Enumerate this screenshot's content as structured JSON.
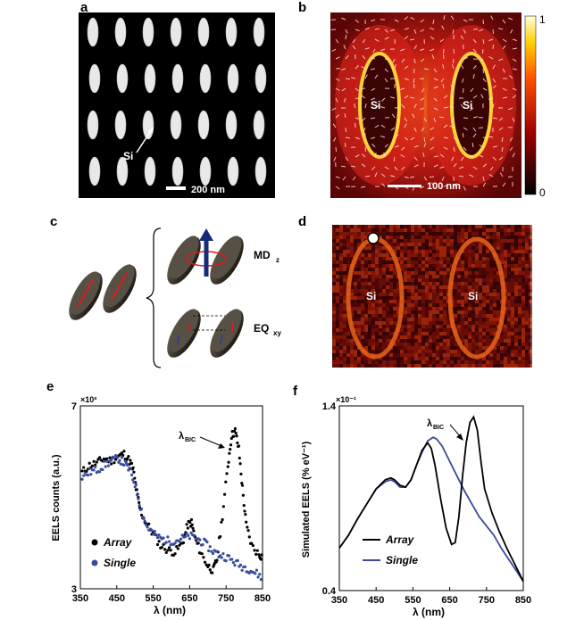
{
  "panels": {
    "a": {
      "label": "a",
      "annotation": "Si",
      "scale_bar": "200 nm"
    },
    "b": {
      "label": "b",
      "particles": [
        "Si",
        "Si"
      ],
      "scale_bar": "100 nm",
      "colorbar": {
        "max": "1",
        "min": "0"
      }
    },
    "c": {
      "label": "c",
      "modes": [
        {
          "name": "MD",
          "sub": "z"
        },
        {
          "name": "EQ",
          "sub": "xy"
        }
      ]
    },
    "d": {
      "label": "d",
      "particles": [
        "Si",
        "Si"
      ]
    },
    "e": {
      "label": "e"
    },
    "f": {
      "label": "f"
    }
  },
  "colors": {
    "array": "#000000",
    "single": "#3b4a9c",
    "hot_dark": "#1a0000",
    "hot_bright": "#ffffcc"
  },
  "chart_data": [
    {
      "type": "scatter",
      "panel": "e",
      "xlabel": "λ (nm)",
      "ylabel": "EELS counts (a.u.)",
      "y_exponent": "×10³",
      "xlim": [
        350,
        850
      ],
      "ylim": [
        3,
        7
      ],
      "x_ticks": [
        "350",
        "450",
        "550",
        "650",
        "750",
        "850"
      ],
      "y_ticks": [
        "3",
        "7"
      ],
      "annotation": {
        "text": "λ",
        "sub": "BIC",
        "x": 770,
        "y": 6.5
      },
      "series": [
        {
          "name": "Array",
          "color": "#000000",
          "x": [
            355,
            375,
            395,
            415,
            435,
            455,
            470,
            485,
            495,
            505,
            515,
            530,
            550,
            570,
            590,
            610,
            630,
            645,
            655,
            665,
            680,
            700,
            715,
            725,
            740,
            755,
            765,
            775,
            785,
            795,
            805,
            820,
            840,
            850
          ],
          "y": [
            5.55,
            5.7,
            5.75,
            5.85,
            5.8,
            5.9,
            5.95,
            5.8,
            5.6,
            5.1,
            4.7,
            4.45,
            4.2,
            3.95,
            3.85,
            3.8,
            4.0,
            4.4,
            4.45,
            4.1,
            3.8,
            3.5,
            3.4,
            3.65,
            4.6,
            5.7,
            6.35,
            6.45,
            6.05,
            5.2,
            4.4,
            3.95,
            3.75,
            3.7
          ]
        },
        {
          "name": "Single",
          "color": "#3b4a9c",
          "x": [
            355,
            375,
            395,
            415,
            435,
            455,
            470,
            485,
            500,
            515,
            530,
            550,
            570,
            590,
            610,
            630,
            650,
            670,
            690,
            710,
            730,
            750,
            770,
            790,
            810,
            830,
            850
          ],
          "y": [
            5.45,
            5.55,
            5.6,
            5.7,
            5.8,
            5.85,
            5.75,
            5.6,
            5.3,
            4.8,
            4.4,
            4.2,
            4.1,
            4.05,
            4.05,
            4.1,
            4.15,
            4.1,
            4.0,
            3.85,
            3.75,
            3.7,
            3.6,
            3.5,
            3.45,
            3.35,
            3.25
          ]
        }
      ]
    },
    {
      "type": "line",
      "panel": "f",
      "xlabel": "λ (nm)",
      "ylabel": "Simulated EELS (% eV⁻¹)",
      "y_exponent": "×10⁻¹",
      "xlim": [
        350,
        850
      ],
      "ylim": [
        0.4,
        1.4
      ],
      "x_ticks": [
        "350",
        "450",
        "550",
        "650",
        "750",
        "850"
      ],
      "y_ticks": [
        "0.4",
        "1.4"
      ],
      "annotation": {
        "text": "λ",
        "sub": "BIC",
        "x": 715,
        "y": 1.3
      },
      "series": [
        {
          "name": "Array",
          "color": "#000000",
          "x": [
            350,
            375,
            400,
            425,
            450,
            475,
            490,
            500,
            515,
            530,
            545,
            560,
            575,
            590,
            600,
            610,
            625,
            640,
            655,
            665,
            675,
            685,
            695,
            705,
            715,
            725,
            735,
            745,
            765,
            785,
            805,
            825,
            850
          ],
          "y": [
            0.63,
            0.7,
            0.79,
            0.87,
            0.95,
            1.0,
            1.01,
            1.0,
            0.97,
            0.96,
            1.0,
            1.08,
            1.16,
            1.2,
            1.17,
            1.08,
            0.9,
            0.74,
            0.65,
            0.66,
            0.8,
            1.02,
            1.2,
            1.31,
            1.34,
            1.27,
            1.1,
            0.95,
            0.82,
            0.72,
            0.63,
            0.55,
            0.45
          ]
        },
        {
          "name": "Single",
          "color": "#3b4a9c",
          "x": [
            350,
            375,
            400,
            425,
            450,
            475,
            490,
            500,
            515,
            530,
            545,
            560,
            575,
            590,
            605,
            615,
            630,
            650,
            670,
            690,
            710,
            730,
            750,
            770,
            790,
            810,
            830,
            850
          ],
          "y": [
            0.63,
            0.7,
            0.79,
            0.87,
            0.95,
            0.99,
            1.0,
            0.99,
            0.96,
            0.96,
            1.0,
            1.08,
            1.15,
            1.21,
            1.23,
            1.22,
            1.18,
            1.1,
            1.02,
            0.94,
            0.87,
            0.8,
            0.75,
            0.7,
            0.63,
            0.57,
            0.51,
            0.45
          ]
        }
      ]
    }
  ]
}
